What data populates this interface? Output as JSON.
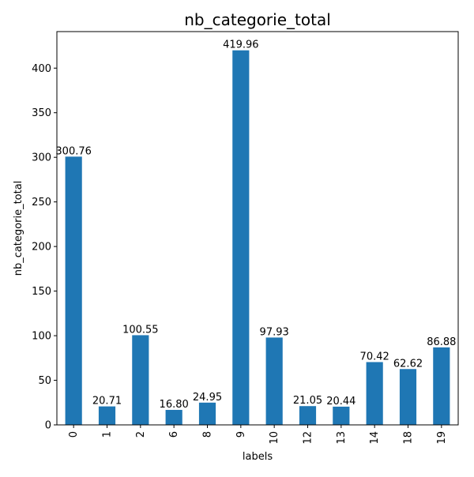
{
  "chart_data": {
    "type": "bar",
    "title": "nb_categorie_total",
    "xlabel": "labels",
    "ylabel": "nb_categorie_total",
    "categories": [
      "0",
      "1",
      "2",
      "6",
      "8",
      "9",
      "10",
      "12",
      "13",
      "14",
      "18",
      "19"
    ],
    "values": [
      300.76,
      20.71,
      100.55,
      16.8,
      24.95,
      419.96,
      97.93,
      21.05,
      20.44,
      70.42,
      62.62,
      86.88
    ],
    "data_labels": [
      "300.76",
      "20.71",
      "100.55",
      "16.80",
      "24.95",
      "419.96",
      "97.93",
      "21.05",
      "20.44",
      "70.42",
      "62.62",
      "86.88"
    ],
    "ylim": [
      0,
      440.958
    ],
    "yticks": [
      0,
      50,
      100,
      150,
      200,
      250,
      300,
      350,
      400
    ],
    "xtick_rotation": 90,
    "grid": false,
    "legend": "none",
    "bar_color": "#1f77b4"
  }
}
